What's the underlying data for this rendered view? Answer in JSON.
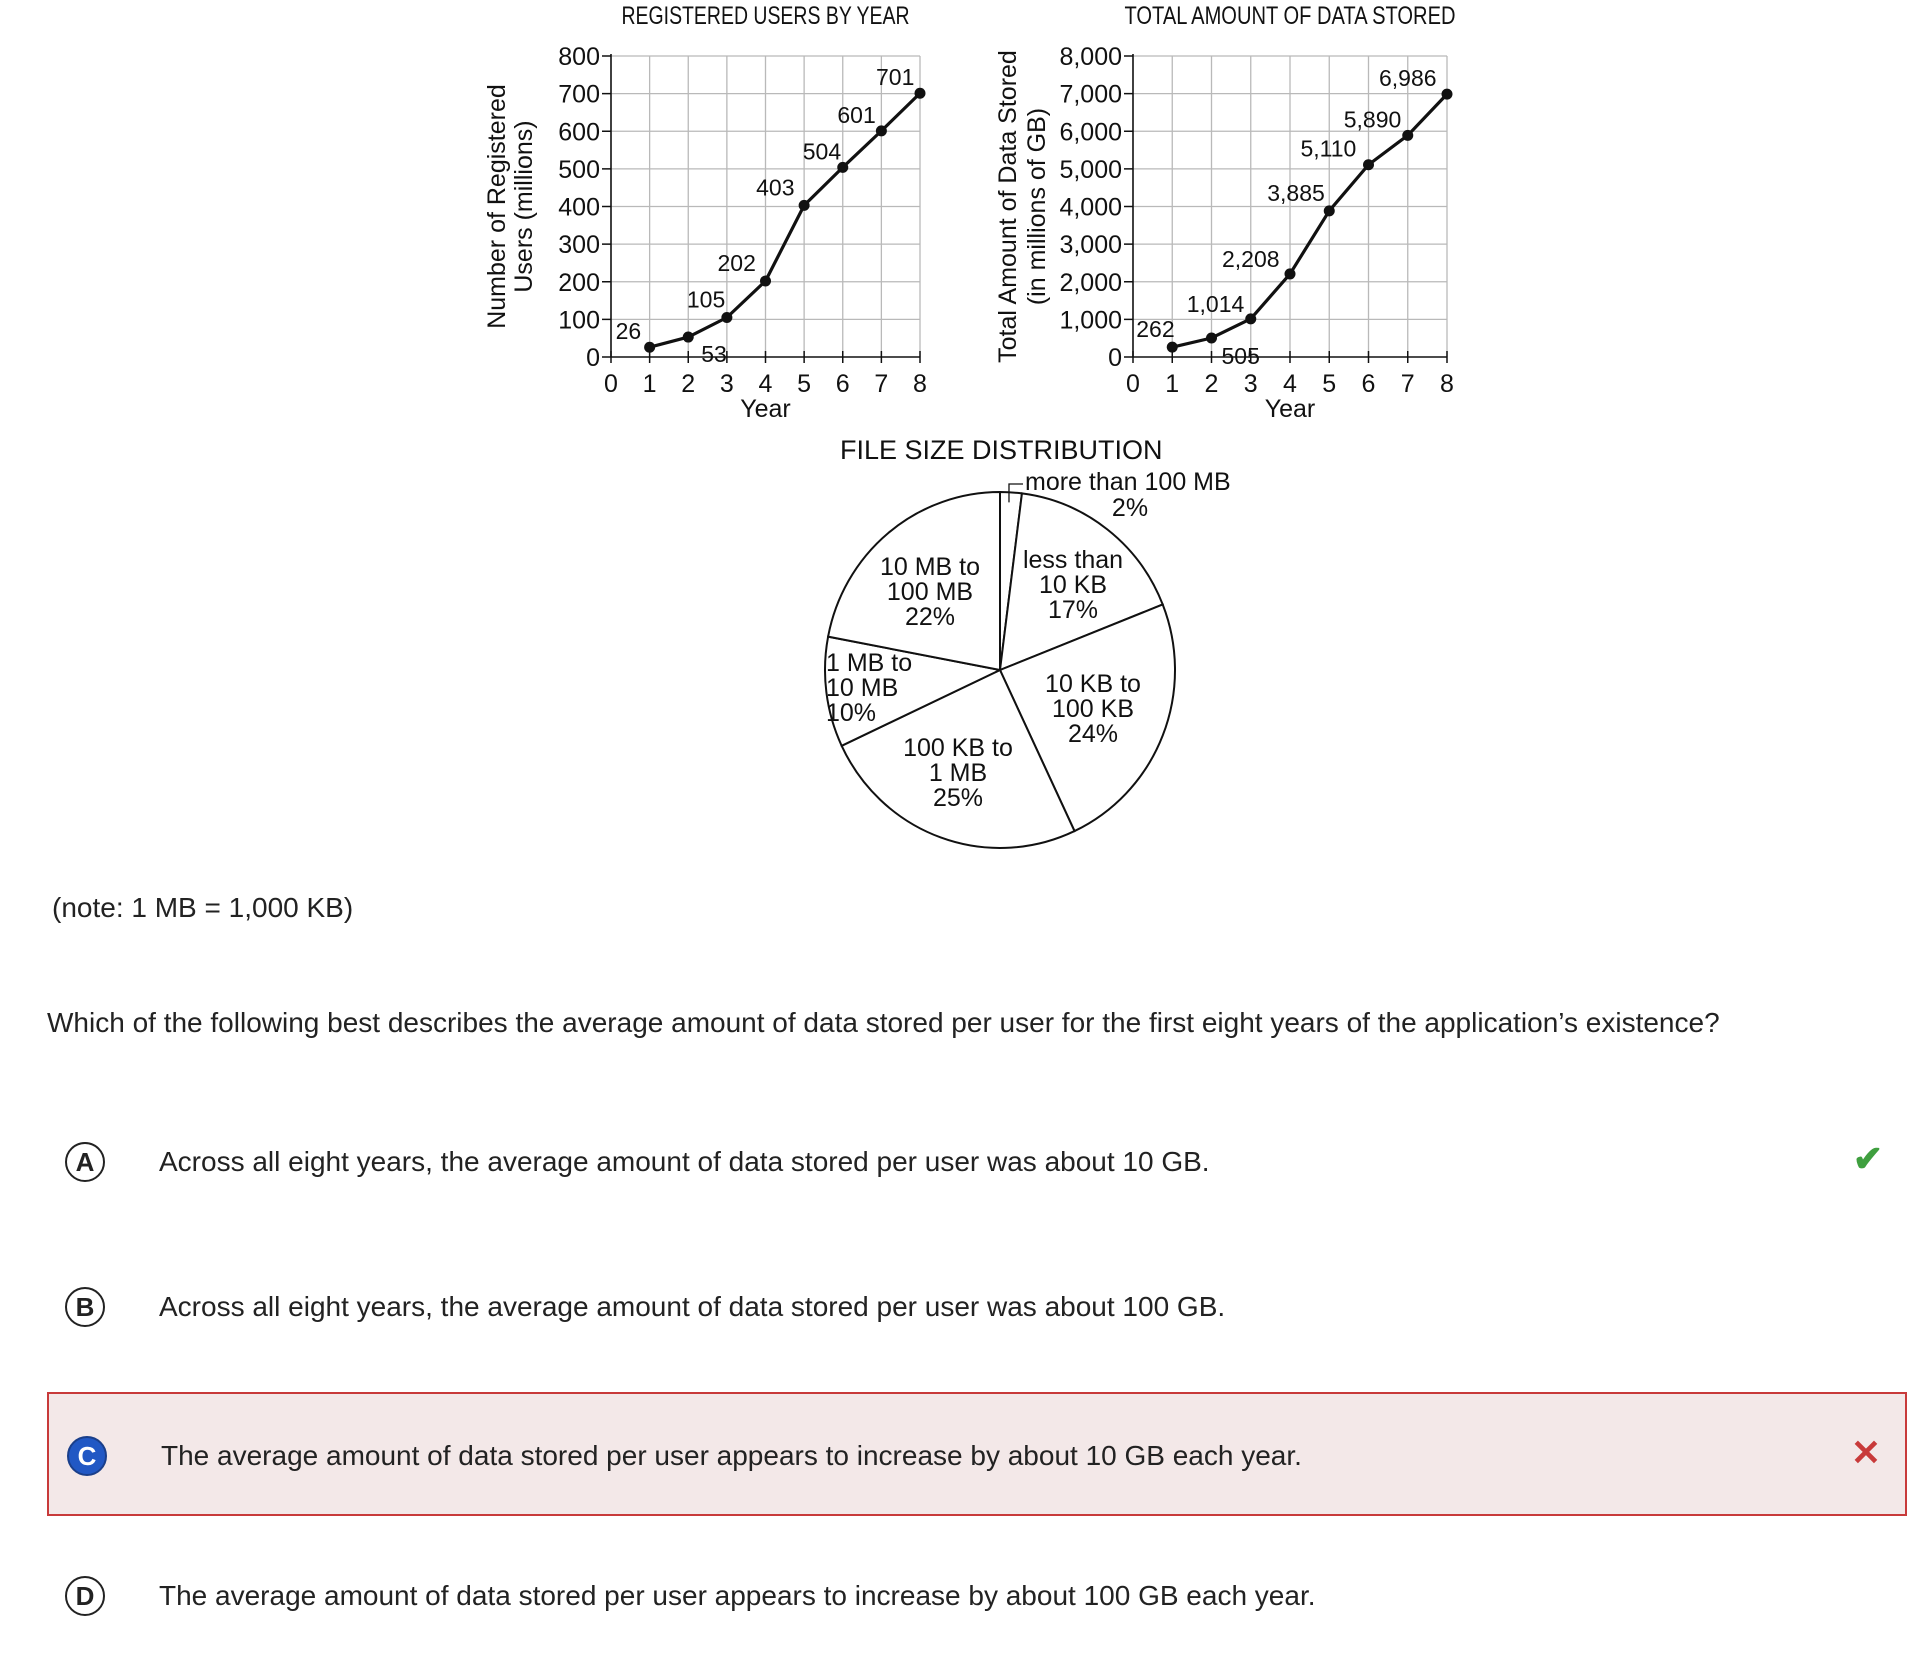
{
  "chart_data": [
    {
      "type": "line",
      "title": "REGISTERED USERS BY YEAR",
      "xlabel": "Year",
      "ylabel_line1": "Number of Registered",
      "ylabel_line2": "Users (millions)",
      "x": [
        1,
        2,
        3,
        4,
        5,
        6,
        7,
        8
      ],
      "y": [
        26,
        53,
        105,
        202,
        403,
        504,
        601,
        701
      ],
      "labels": [
        "26",
        "53",
        "105",
        "202",
        "403",
        "504",
        "601",
        "701"
      ],
      "xticks": [
        "0",
        "1",
        "2",
        "3",
        "4",
        "5",
        "6",
        "7",
        "8"
      ],
      "yticks": [
        "0",
        "100",
        "200",
        "300",
        "400",
        "500",
        "600",
        "700",
        "800"
      ],
      "xlim": [
        0,
        8
      ],
      "ylim": [
        0,
        800
      ],
      "grid": true
    },
    {
      "type": "line",
      "title": "TOTAL AMOUNT OF DATA STORED",
      "xlabel": "Year",
      "ylabel_line1": "Total Amount of Data Stored",
      "ylabel_line2": "(in millions of GB)",
      "x": [
        1,
        2,
        3,
        4,
        5,
        6,
        7,
        8
      ],
      "y": [
        262,
        505,
        1014,
        2208,
        3885,
        5110,
        5890,
        6986
      ],
      "labels": [
        "262",
        "505",
        "1,014",
        "2,208",
        "3,885",
        "5,110",
        "5,890",
        "6,986"
      ],
      "xticks": [
        "0",
        "1",
        "2",
        "3",
        "4",
        "5",
        "6",
        "7",
        "8"
      ],
      "yticks": [
        "0",
        "1,000",
        "2,000",
        "3,000",
        "4,000",
        "5,000",
        "6,000",
        "7,000",
        "8,000"
      ],
      "xlim": [
        0,
        8
      ],
      "ylim": [
        0,
        8000
      ],
      "grid": true
    },
    {
      "type": "pie",
      "title": "FILE SIZE DISTRIBUTION",
      "slices": [
        {
          "label": [
            "more than 100 MB",
            "2%"
          ],
          "value": 2
        },
        {
          "label": [
            "less than",
            "10 KB",
            "17%"
          ],
          "value": 17
        },
        {
          "label": [
            "10 KB to",
            "100 KB",
            "24%"
          ],
          "value": 24
        },
        {
          "label": [
            "100 KB to",
            "1 MB",
            "25%"
          ],
          "value": 25
        },
        {
          "label": [
            "1 MB to",
            "10 MB",
            "10%"
          ],
          "value": 10
        },
        {
          "label": [
            "10 MB to",
            "100 MB",
            "22%"
          ],
          "value": 22
        }
      ]
    }
  ],
  "note": "(note: 1 MB = 1,000 KB)",
  "question": "Which of the following best describes the average amount of data stored per user for the first eight years of the application’s existence?",
  "choices": [
    {
      "letter": "A",
      "text": "Across all eight years, the average amount of data stored per user was about 10 GB.",
      "mark": "✔"
    },
    {
      "letter": "B",
      "text": "Across all eight years, the average amount of data stored per user was about 100 GB.",
      "mark": ""
    },
    {
      "letter": "C",
      "text": "The average amount of data stored per user appears to increase by about 10 GB each year.",
      "mark": "✕"
    },
    {
      "letter": "D",
      "text": "The average amount of data stored per user appears to increase by about 100 GB each year.",
      "mark": ""
    }
  ],
  "colors": {
    "correct": "#3f9f3f",
    "incorrect": "#c83a3a",
    "selected": "#2158c4"
  }
}
